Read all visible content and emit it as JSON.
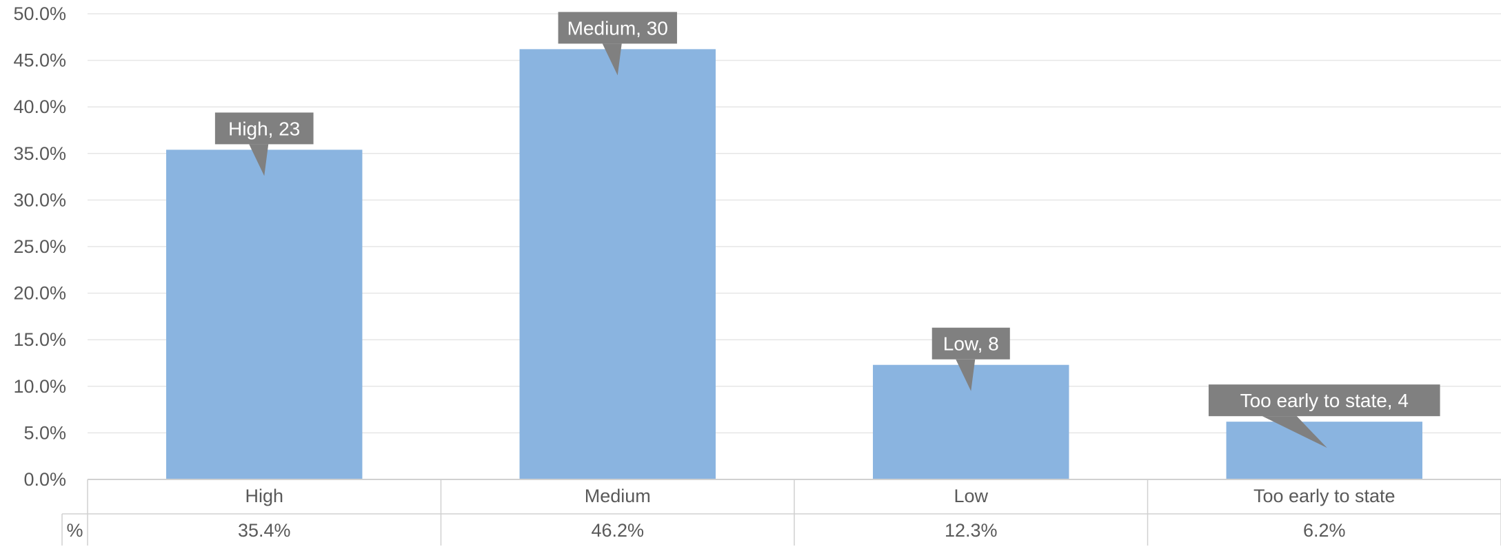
{
  "chart_data": {
    "type": "bar",
    "categories": [
      "High",
      "Medium",
      "Low",
      "Too early to state"
    ],
    "series": [
      {
        "values": [
          35.4,
          46.2,
          12.3,
          6.2
        ],
        "counts": [
          23,
          30,
          8,
          4
        ],
        "data_labels": [
          "High, 23",
          "Medium, 30",
          "Low, 8",
          "Too early to state, 4"
        ],
        "color": "#8ab4e0"
      }
    ],
    "ylim": [
      0,
      50
    ],
    "yticks": [
      "0.0%",
      "5.0%",
      "10.0%",
      "15.0%",
      "20.0%",
      "25.0%",
      "30.0%",
      "35.0%",
      "40.0%",
      "45.0%",
      "50.0%"
    ],
    "grid": true,
    "data_table": {
      "row_header": "%",
      "cells": [
        "35.4%",
        "46.2%",
        "12.3%",
        "6.2%"
      ]
    },
    "colors": {
      "bar": "#8ab4e0",
      "callout": "#808080",
      "callout_text": "#ffffff",
      "grid": "#e6e6e6",
      "axis": "#d0d0d0",
      "text": "#595959"
    }
  }
}
